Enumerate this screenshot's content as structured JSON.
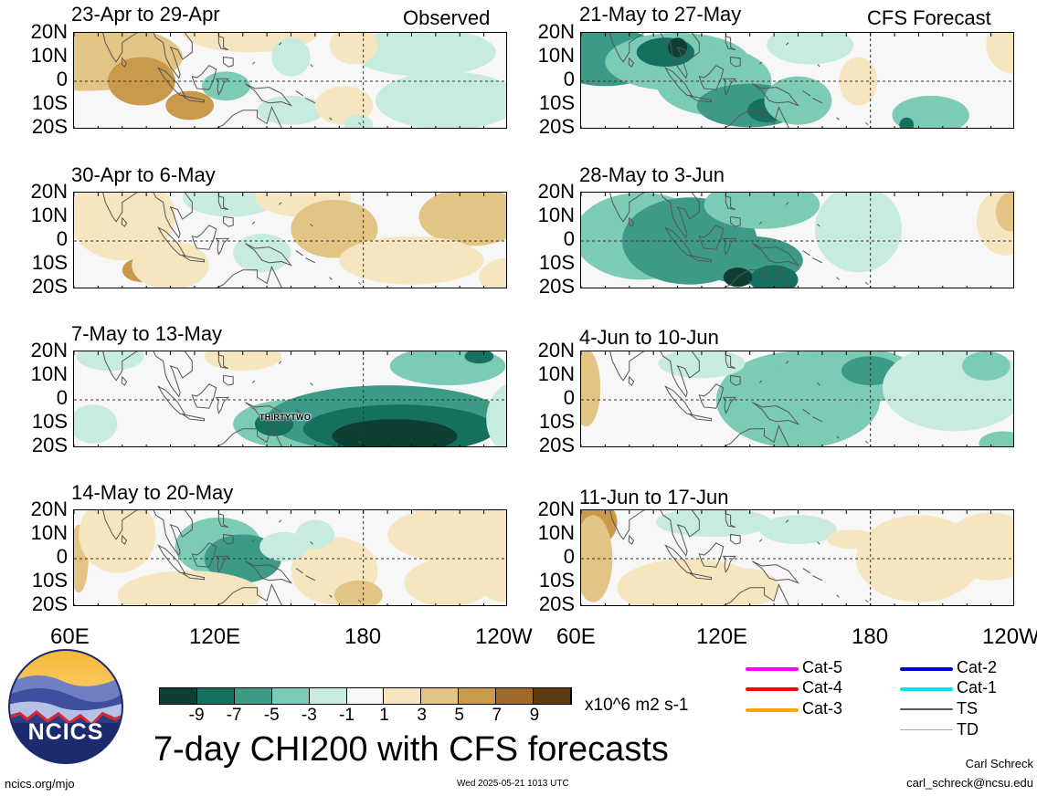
{
  "panels": [
    {
      "title": "23-Apr to 29-Apr",
      "tag": "Observed"
    },
    {
      "title": "21-May to 27-May",
      "tag": "CFS Forecast"
    },
    {
      "title": "30-Apr to 6-May",
      "tag": ""
    },
    {
      "title": "28-May to 3-Jun",
      "tag": ""
    },
    {
      "title": "7-May to 13-May",
      "tag": ""
    },
    {
      "title": "4-Jun to 10-Jun",
      "tag": ""
    },
    {
      "title": "14-May to 20-May",
      "tag": ""
    },
    {
      "title": "11-Jun to 17-Jun",
      "tag": ""
    }
  ],
  "lat_labels": [
    "20N",
    "10N",
    "0",
    "10S",
    "20S"
  ],
  "lon_labels": [
    "60E",
    "120E",
    "180",
    "120W"
  ],
  "storm_label": "THIRTYTWO",
  "colorbar": {
    "ticks": [
      "-9",
      "-7",
      "-5",
      "-3",
      "-1",
      "1",
      "3",
      "5",
      "7",
      "9"
    ],
    "units": "x10^6 m2 s-1",
    "colors": [
      "#0d3f35",
      "#16705f",
      "#3c9a87",
      "#7ccbb6",
      "#c8ebe0",
      "#f7f7f7",
      "#f5e6c0",
      "#e2c585",
      "#c99a4c",
      "#9e6a2c",
      "#5e3c13"
    ]
  },
  "main_title": "7-day CHI200 with CFS forecasts",
  "logo": {
    "text": "NCICS"
  },
  "legend": [
    {
      "label": "Cat-5",
      "color": "#ff00ff"
    },
    {
      "label": "Cat-4",
      "color": "#ff0000"
    },
    {
      "label": "Cat-3",
      "color": "#ffa500"
    },
    {
      "label": "Cat-2",
      "color": "#0000cc"
    },
    {
      "label": "Cat-1",
      "color": "#00e5ee"
    },
    {
      "label": "TS",
      "color": "#555555"
    },
    {
      "label": "TD",
      "color": "#aaaaaa"
    }
  ],
  "footer": {
    "left": "ncics.org/mjo",
    "center": "Wed 2025-05-21 1013 UTC",
    "author": "Carl Schreck",
    "email": "carl_schreck@ncsu.edu"
  }
}
